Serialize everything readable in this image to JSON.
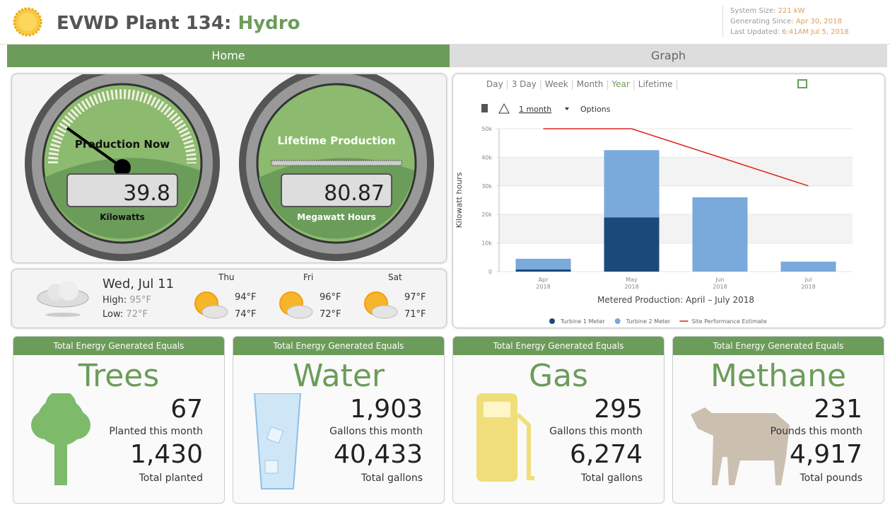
{
  "header": {
    "title": "EVWD Plant 134:",
    "subtitle": "Hydro",
    "info": [
      {
        "label": "System Size:",
        "value": "221 kW"
      },
      {
        "label": "Generating Since:",
        "value": "Apr 30, 2018"
      },
      {
        "label": "Last Updated:",
        "value": "6:41AM Jul 5, 2018"
      }
    ]
  },
  "tabs": [
    "Home",
    "Graph"
  ],
  "gauges": [
    {
      "label": "Production Now",
      "value": "39.8",
      "unit": "Kilowatts"
    },
    {
      "label": "Lifetime Production",
      "value": "80.87",
      "unit": "Megawatt Hours"
    }
  ],
  "weather": {
    "today": {
      "day": "Wed, Jul 11",
      "high_label": "High:",
      "high": "95°F",
      "low_label": "Low:",
      "low": "72°F"
    },
    "forecast": [
      {
        "day": "Thu",
        "high": "94°F",
        "low": "74°F"
      },
      {
        "day": "Fri",
        "high": "96°F",
        "low": "72°F"
      },
      {
        "day": "Sat",
        "high": "97°F",
        "low": "71°F"
      }
    ]
  },
  "graph_controls": {
    "ranges": [
      "Day",
      "3 Day",
      "Week",
      "Month",
      "Year",
      "Lifetime"
    ],
    "selected": 4,
    "period": "1 month",
    "options": "Options"
  },
  "chart_data": {
    "type": "bar",
    "stacked": true,
    "categories": [
      "Apr 2018",
      "May 2018",
      "Jun 2018",
      "Jul 2018"
    ],
    "series": [
      {
        "name": "Turbine 1 Meter",
        "color": "#1b4a7a",
        "values": [
          800,
          19000,
          0,
          0
        ]
      },
      {
        "name": "Turbine 2 Meter",
        "color": "#7aaadb",
        "values": [
          3700,
          23500,
          26000,
          3500
        ]
      },
      {
        "name": "Site Performance Estimate",
        "color": "#e02020",
        "type": "line",
        "values": [
          50000,
          50000,
          40000,
          30000
        ]
      }
    ],
    "ylim": [
      0,
      50000
    ],
    "yticks": [
      0,
      {
        "value": 10000,
        "label": "10k"
      },
      {
        "value": 20000,
        "label": "20k"
      },
      {
        "value": 30000,
        "label": "30k"
      },
      {
        "value": 40000,
        "label": "40k"
      },
      {
        "value": 50000,
        "label": "50k"
      }
    ],
    "ylabel": "Kilowatt hours",
    "xlabel": "Metered Production: April – July 2018",
    "grid": true
  },
  "equivalents": [
    {
      "header": "Total Energy Generated Equals",
      "title": "Trees",
      "month_value": "67",
      "month_label": "Planted this month",
      "total_value": "1,430",
      "total_label": "Total planted"
    },
    {
      "header": "Total Energy Generated Equals",
      "title": "Water",
      "month_value": "1,903",
      "month_label": "Gallons this month",
      "total_value": "40,433",
      "total_label": "Total gallons"
    },
    {
      "header": "Total Energy Generated Equals",
      "title": "Gas",
      "month_value": "295",
      "month_label": "Gallons this month",
      "total_value": "6,274",
      "total_label": "Total gallons"
    },
    {
      "header": "Total Energy Generated Equals",
      "title": "Methane",
      "month_value": "231",
      "month_label": "Pounds this month",
      "total_value": "4,917",
      "total_label": "Total pounds"
    }
  ]
}
